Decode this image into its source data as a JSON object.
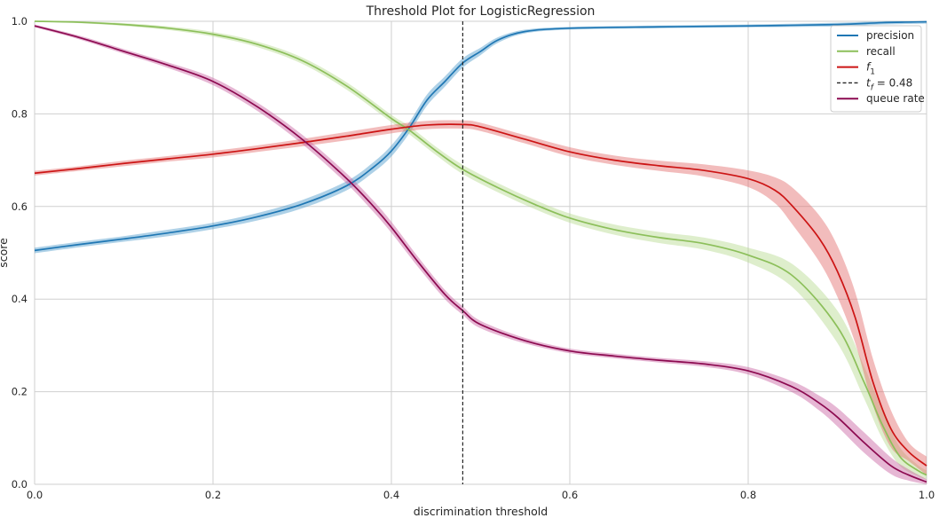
{
  "chart_data": {
    "type": "line",
    "title": "Threshold Plot for LogisticRegression",
    "xlabel": "discrimination threshold",
    "ylabel": "score",
    "xlim": [
      0,
      1
    ],
    "ylim": [
      0,
      1
    ],
    "grid": true,
    "legend_position": "top-right",
    "x_ticks": [
      "0.0",
      "0.2",
      "0.4",
      "0.6",
      "0.8",
      "1.0"
    ],
    "y_ticks": [
      "0.0",
      "0.2",
      "0.4",
      "0.6",
      "0.8",
      "1.0"
    ],
    "threshold": {
      "value": 0.48,
      "label_base": "t",
      "label_sub": "f",
      "label_rest": " = 0.48",
      "color": "#262626",
      "style": "dashed"
    },
    "series": [
      {
        "name": "precision",
        "label_base": "precision",
        "label_sub": "",
        "color": "#1f77b4",
        "band_color": "#4c9ac9",
        "x": [
          0,
          0.05,
          0.1,
          0.15,
          0.2,
          0.25,
          0.3,
          0.35,
          0.38,
          0.4,
          0.42,
          0.44,
          0.46,
          0.48,
          0.5,
          0.52,
          0.55,
          0.6,
          0.7,
          0.8,
          0.9,
          0.95,
          1.0
        ],
        "y": [
          0.505,
          0.518,
          0.53,
          0.543,
          0.558,
          0.578,
          0.605,
          0.645,
          0.685,
          0.72,
          0.77,
          0.83,
          0.87,
          0.91,
          0.935,
          0.96,
          0.978,
          0.985,
          0.988,
          0.99,
          0.993,
          0.997,
          0.999
        ],
        "band": [
          0.006,
          0.006,
          0.006,
          0.007,
          0.007,
          0.008,
          0.009,
          0.01,
          0.011,
          0.012,
          0.012,
          0.012,
          0.011,
          0.01,
          0.008,
          0.006,
          0.004,
          0.003,
          0.003,
          0.003,
          0.004,
          0.004,
          0.004
        ]
      },
      {
        "name": "recall",
        "label_base": "recall",
        "label_sub": "",
        "color": "#8cbf5a",
        "band_color": "#b5d98f",
        "x": [
          0,
          0.05,
          0.1,
          0.15,
          0.2,
          0.25,
          0.3,
          0.35,
          0.4,
          0.42,
          0.45,
          0.48,
          0.52,
          0.56,
          0.6,
          0.65,
          0.7,
          0.75,
          0.8,
          0.85,
          0.9,
          0.93,
          0.95,
          0.97,
          0.99,
          1.0
        ],
        "y": [
          1.0,
          0.998,
          0.993,
          0.985,
          0.972,
          0.95,
          0.915,
          0.86,
          0.79,
          0.765,
          0.72,
          0.68,
          0.64,
          0.605,
          0.575,
          0.55,
          0.533,
          0.52,
          0.495,
          0.45,
          0.34,
          0.22,
          0.13,
          0.06,
          0.03,
          0.02
        ],
        "band": [
          0.001,
          0.002,
          0.003,
          0.004,
          0.005,
          0.006,
          0.007,
          0.008,
          0.008,
          0.009,
          0.009,
          0.01,
          0.01,
          0.01,
          0.01,
          0.011,
          0.012,
          0.013,
          0.016,
          0.025,
          0.035,
          0.035,
          0.03,
          0.02,
          0.012,
          0.01
        ]
      },
      {
        "name": "f1",
        "label_base": "f",
        "label_sub": "1",
        "color": "#cc1414",
        "band_color": "#e26a6a",
        "x": [
          0,
          0.05,
          0.1,
          0.15,
          0.2,
          0.25,
          0.3,
          0.35,
          0.4,
          0.44,
          0.48,
          0.5,
          0.55,
          0.6,
          0.65,
          0.7,
          0.75,
          0.8,
          0.83,
          0.85,
          0.88,
          0.9,
          0.92,
          0.94,
          0.96,
          0.98,
          1.0
        ],
        "y": [
          0.672,
          0.682,
          0.693,
          0.703,
          0.713,
          0.725,
          0.738,
          0.752,
          0.767,
          0.776,
          0.777,
          0.772,
          0.745,
          0.718,
          0.7,
          0.688,
          0.678,
          0.66,
          0.635,
          0.6,
          0.53,
          0.46,
          0.36,
          0.22,
          0.12,
          0.07,
          0.04
        ],
        "band": [
          0.005,
          0.005,
          0.006,
          0.006,
          0.007,
          0.007,
          0.008,
          0.009,
          0.009,
          0.009,
          0.009,
          0.009,
          0.009,
          0.01,
          0.01,
          0.011,
          0.013,
          0.018,
          0.028,
          0.04,
          0.05,
          0.055,
          0.055,
          0.05,
          0.04,
          0.02,
          0.02
        ]
      },
      {
        "name": "queue rate",
        "label_base": "queue rate",
        "label_sub": "",
        "color": "#8c0a50",
        "band_color": "#c85fa0",
        "x": [
          0,
          0.05,
          0.1,
          0.15,
          0.2,
          0.25,
          0.3,
          0.35,
          0.38,
          0.4,
          0.43,
          0.46,
          0.48,
          0.5,
          0.55,
          0.6,
          0.65,
          0.7,
          0.75,
          0.8,
          0.85,
          0.88,
          0.9,
          0.93,
          0.96,
          0.98,
          1.0
        ],
        "y": [
          0.99,
          0.965,
          0.935,
          0.905,
          0.87,
          0.815,
          0.745,
          0.66,
          0.6,
          0.555,
          0.48,
          0.41,
          0.375,
          0.345,
          0.31,
          0.288,
          0.277,
          0.268,
          0.26,
          0.245,
          0.21,
          0.175,
          0.145,
          0.09,
          0.04,
          0.02,
          0.005
        ],
        "band": [
          0.003,
          0.004,
          0.005,
          0.006,
          0.008,
          0.009,
          0.01,
          0.011,
          0.012,
          0.012,
          0.011,
          0.01,
          0.009,
          0.008,
          0.006,
          0.005,
          0.005,
          0.005,
          0.006,
          0.008,
          0.012,
          0.016,
          0.02,
          0.022,
          0.018,
          0.012,
          0.006
        ]
      }
    ]
  }
}
